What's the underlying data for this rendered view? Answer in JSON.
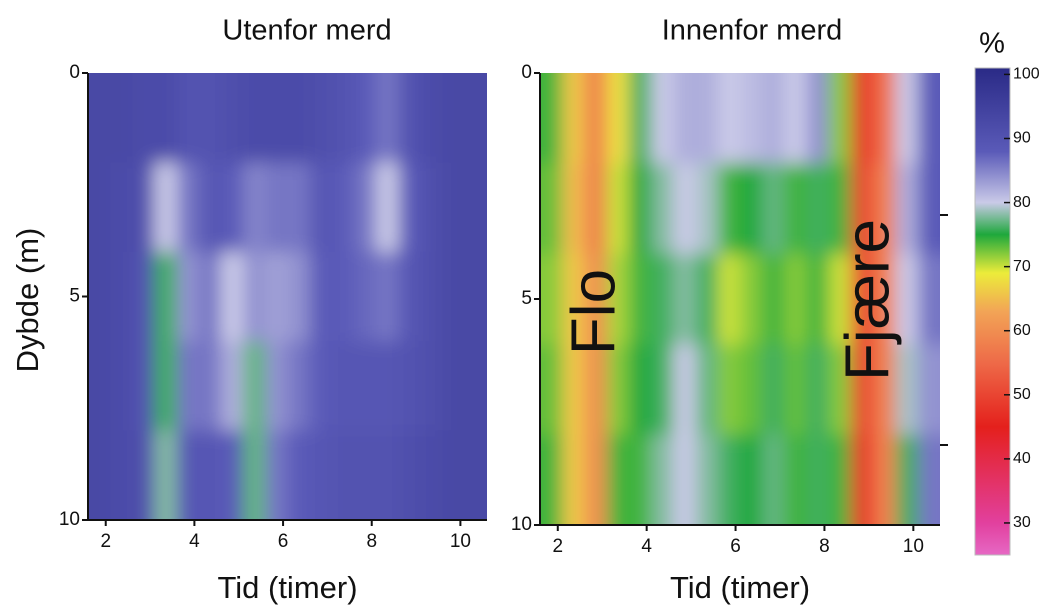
{
  "chart_data": [
    {
      "type": "heatmap",
      "title": "Utenfor merd",
      "xlabel": "Tid (timer)",
      "ylabel": "Dybde (m)",
      "xlim": [
        1.6,
        10.6
      ],
      "ylim": [
        0,
        10
      ],
      "xticks": [
        2,
        4,
        6,
        8,
        10
      ],
      "yticks": [
        0,
        5,
        10
      ],
      "x_bins": [
        1.6,
        2.1,
        2.6,
        3.1,
        3.6,
        4.1,
        4.6,
        5.1,
        5.6,
        6.1,
        6.6,
        7.1,
        7.6,
        8.1,
        8.6,
        9.1,
        9.6,
        10.1,
        10.6
      ],
      "y_bins": [
        0,
        2,
        4,
        6,
        8,
        10
      ],
      "z": [
        [
          93,
          93,
          92,
          92,
          90,
          90,
          91,
          92,
          92,
          92,
          91,
          90,
          88,
          86,
          90,
          92,
          93,
          93
        ],
        [
          93,
          92,
          91,
          80,
          86,
          89,
          88,
          85,
          86,
          86,
          89,
          88,
          86,
          80,
          88,
          91,
          93,
          93
        ],
        [
          93,
          92,
          90,
          76,
          84,
          86,
          80,
          84,
          83,
          84,
          88,
          88,
          87,
          86,
          89,
          91,
          93,
          93
        ],
        [
          93,
          92,
          90,
          76,
          86,
          86,
          82,
          77,
          84,
          86,
          88,
          89,
          89,
          89,
          90,
          91,
          93,
          93
        ],
        [
          93,
          92,
          91,
          78,
          89,
          89,
          88,
          77,
          86,
          88,
          89,
          90,
          90,
          90,
          91,
          92,
          93,
          93
        ]
      ]
    },
    {
      "type": "heatmap",
      "title": "Innenfor merd",
      "xlabel": "Tid (timer)",
      "xlim": [
        1.6,
        10.6
      ],
      "ylim": [
        0,
        10
      ],
      "xticks": [
        2,
        4,
        6,
        8,
        10
      ],
      "yticks": [
        0,
        5,
        10
      ],
      "x_bins": [
        1.6,
        2.1,
        2.6,
        3.1,
        3.6,
        4.1,
        4.6,
        5.1,
        5.6,
        6.1,
        6.6,
        7.1,
        7.6,
        8.1,
        8.6,
        9.1,
        9.6,
        10.1,
        10.6
      ],
      "y_bins": [
        0,
        2,
        4,
        6,
        8,
        10
      ],
      "annotations": [
        "Flo",
        "Fjære"
      ],
      "z": [
        [
          74,
          66,
          58,
          68,
          76,
          80,
          82,
          82,
          80,
          81,
          82,
          80,
          84,
          72,
          48,
          56,
          80,
          88
        ],
        [
          73,
          65,
          58,
          70,
          75,
          78,
          80,
          79,
          74,
          75,
          77,
          74,
          76,
          74,
          50,
          58,
          82,
          88
        ],
        [
          72,
          66,
          60,
          71,
          74,
          76,
          78,
          76,
          70,
          72,
          74,
          72,
          74,
          70,
          50,
          58,
          80,
          86
        ],
        [
          73,
          66,
          60,
          72,
          75,
          76,
          80,
          77,
          72,
          73,
          76,
          73,
          76,
          72,
          50,
          58,
          79,
          84
        ],
        [
          74,
          66,
          60,
          74,
          74,
          78,
          80,
          78,
          76,
          75,
          77,
          74,
          76,
          74,
          48,
          58,
          76,
          86
        ]
      ]
    }
  ],
  "colorbar": {
    "title": "%",
    "lim": [
      25,
      101
    ],
    "ticks": [
      30,
      40,
      50,
      60,
      70,
      80,
      90,
      100
    ],
    "colorscale": [
      [
        25,
        "#e668c4"
      ],
      [
        30,
        "#e2409e"
      ],
      [
        45,
        "#e4201c"
      ],
      [
        55,
        "#ee6a48"
      ],
      [
        63,
        "#f2a456"
      ],
      [
        69,
        "#ecec3a"
      ],
      [
        75,
        "#1ea83c"
      ],
      [
        80,
        "#cacae8"
      ],
      [
        88,
        "#5a5ab8"
      ],
      [
        101,
        "#2a2a86"
      ]
    ]
  }
}
